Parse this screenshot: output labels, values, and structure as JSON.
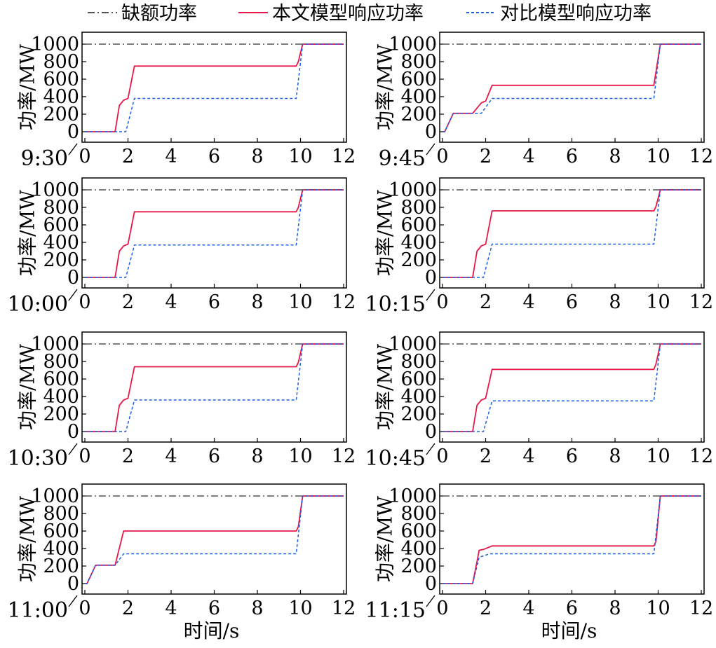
{
  "legend": [
    {
      "key": "deficit",
      "label": "缺额功率",
      "color": "#555555",
      "dash": "10,4,2,4"
    },
    {
      "key": "proposed",
      "label": "本文模型响应功率",
      "color": "#e8174a",
      "dash": ""
    },
    {
      "key": "baseline",
      "label": "对比模型响应功率",
      "color": "#1a5fe6",
      "dash": "4,3"
    }
  ],
  "chart_data": [
    {
      "type": "line",
      "time_label": "9:30",
      "ylabel": "功率/MW",
      "xlabel": "",
      "xlim": [
        0,
        12
      ],
      "ylim": [
        0,
        1000
      ],
      "x_ticks": [
        "0",
        "2",
        "4",
        "6",
        "8",
        "10",
        "12"
      ],
      "y_ticks": [
        "0",
        "200",
        "400",
        "600",
        "800",
        "1000"
      ],
      "series": [
        {
          "key": "deficit",
          "x": [
            0,
            12
          ],
          "y": [
            1000,
            1000
          ]
        },
        {
          "key": "proposed",
          "x": [
            0,
            1.4,
            1.6,
            1.8,
            1.9,
            2.0,
            2.3,
            9.8,
            9.9,
            10.1,
            12
          ],
          "y": [
            0,
            0,
            300,
            360,
            370,
            380,
            750,
            750,
            800,
            1000,
            1000
          ]
        },
        {
          "key": "baseline",
          "x": [
            0,
            1.9,
            2.3,
            9.8,
            10.1,
            12
          ],
          "y": [
            0,
            0,
            380,
            380,
            1000,
            1000
          ]
        }
      ]
    },
    {
      "type": "line",
      "time_label": "9:45",
      "ylabel": "功率/MW",
      "xlabel": "",
      "xlim": [
        0,
        12
      ],
      "ylim": [
        0,
        1000
      ],
      "x_ticks": [
        "0",
        "2",
        "4",
        "6",
        "8",
        "10",
        "12"
      ],
      "y_ticks": [
        "0",
        "200",
        "400",
        "600",
        "800",
        "1000"
      ],
      "series": [
        {
          "key": "deficit",
          "x": [
            0,
            12
          ],
          "y": [
            1000,
            1000
          ]
        },
        {
          "key": "proposed",
          "x": [
            0,
            0.1,
            0.5,
            1.4,
            1.8,
            1.9,
            2.0,
            2.3,
            9.8,
            10.1,
            12
          ],
          "y": [
            0,
            0,
            210,
            210,
            330,
            340,
            350,
            530,
            530,
            1000,
            1000
          ]
        },
        {
          "key": "baseline",
          "x": [
            0,
            0.1,
            0.5,
            1.8,
            2.3,
            9.8,
            10.1,
            12
          ],
          "y": [
            0,
            0,
            210,
            210,
            380,
            380,
            1000,
            1000
          ]
        }
      ]
    },
    {
      "type": "line",
      "time_label": "10:00",
      "ylabel": "功率/MW",
      "xlabel": "",
      "xlim": [
        0,
        12
      ],
      "ylim": [
        0,
        1000
      ],
      "x_ticks": [
        "0",
        "2",
        "4",
        "6",
        "8",
        "10",
        "12"
      ],
      "y_ticks": [
        "0",
        "200",
        "400",
        "600",
        "800",
        "1000"
      ],
      "series": [
        {
          "key": "deficit",
          "x": [
            0,
            12
          ],
          "y": [
            1000,
            1000
          ]
        },
        {
          "key": "proposed",
          "x": [
            0,
            1.4,
            1.6,
            1.8,
            1.9,
            2.0,
            2.3,
            9.8,
            9.9,
            10.1,
            12
          ],
          "y": [
            0,
            0,
            300,
            360,
            370,
            380,
            750,
            750,
            800,
            1000,
            1000
          ]
        },
        {
          "key": "baseline",
          "x": [
            0,
            1.9,
            2.3,
            9.8,
            10.1,
            12
          ],
          "y": [
            0,
            0,
            370,
            370,
            1000,
            1000
          ]
        }
      ]
    },
    {
      "type": "line",
      "time_label": "10:15",
      "ylabel": "功率/MW",
      "xlabel": "",
      "xlim": [
        0,
        12
      ],
      "ylim": [
        0,
        1000
      ],
      "x_ticks": [
        "0",
        "2",
        "4",
        "6",
        "8",
        "10",
        "12"
      ],
      "y_ticks": [
        "0",
        "200",
        "400",
        "600",
        "800",
        "1000"
      ],
      "series": [
        {
          "key": "deficit",
          "x": [
            0,
            12
          ],
          "y": [
            1000,
            1000
          ]
        },
        {
          "key": "proposed",
          "x": [
            0,
            1.4,
            1.6,
            1.8,
            1.9,
            2.0,
            2.3,
            9.8,
            9.9,
            10.1,
            12
          ],
          "y": [
            0,
            0,
            300,
            360,
            370,
            380,
            760,
            760,
            810,
            1000,
            1000
          ]
        },
        {
          "key": "baseline",
          "x": [
            0,
            1.9,
            2.3,
            9.8,
            10.1,
            12
          ],
          "y": [
            0,
            0,
            380,
            380,
            1000,
            1000
          ]
        }
      ]
    },
    {
      "type": "line",
      "time_label": "10:30",
      "ylabel": "功率/MW",
      "xlabel": "",
      "xlim": [
        0,
        12
      ],
      "ylim": [
        0,
        1000
      ],
      "x_ticks": [
        "0",
        "2",
        "4",
        "6",
        "8",
        "10",
        "12"
      ],
      "y_ticks": [
        "0",
        "200",
        "400",
        "600",
        "800",
        "1000"
      ],
      "series": [
        {
          "key": "deficit",
          "x": [
            0,
            12
          ],
          "y": [
            1000,
            1000
          ]
        },
        {
          "key": "proposed",
          "x": [
            0,
            1.4,
            1.6,
            1.8,
            1.9,
            2.0,
            2.3,
            9.8,
            9.9,
            10.1,
            12
          ],
          "y": [
            0,
            0,
            300,
            360,
            370,
            380,
            740,
            740,
            790,
            1000,
            1000
          ]
        },
        {
          "key": "baseline",
          "x": [
            0,
            1.9,
            2.3,
            9.8,
            10.1,
            12
          ],
          "y": [
            0,
            0,
            360,
            360,
            1000,
            1000
          ]
        }
      ]
    },
    {
      "type": "line",
      "time_label": "10:45",
      "ylabel": "功率/MW",
      "xlabel": "",
      "xlim": [
        0,
        12
      ],
      "ylim": [
        0,
        1000
      ],
      "x_ticks": [
        "0",
        "2",
        "4",
        "6",
        "8",
        "10",
        "12"
      ],
      "y_ticks": [
        "0",
        "200",
        "400",
        "600",
        "800",
        "1000"
      ],
      "series": [
        {
          "key": "deficit",
          "x": [
            0,
            12
          ],
          "y": [
            1000,
            1000
          ]
        },
        {
          "key": "proposed",
          "x": [
            0,
            1.4,
            1.6,
            1.8,
            1.9,
            2.0,
            2.3,
            9.8,
            9.9,
            10.1,
            12
          ],
          "y": [
            0,
            0,
            300,
            360,
            370,
            380,
            710,
            710,
            770,
            1000,
            1000
          ]
        },
        {
          "key": "baseline",
          "x": [
            0,
            1.9,
            2.3,
            9.8,
            10.1,
            12
          ],
          "y": [
            0,
            0,
            350,
            350,
            1000,
            1000
          ]
        }
      ]
    },
    {
      "type": "line",
      "time_label": "11:00",
      "ylabel": "功率/MW",
      "xlabel": "时间/s",
      "xlim": [
        0,
        12
      ],
      "ylim": [
        0,
        1000
      ],
      "x_ticks": [
        "0",
        "2",
        "4",
        "6",
        "8",
        "10",
        "12"
      ],
      "y_ticks": [
        "0",
        "200",
        "400",
        "600",
        "800",
        "1000"
      ],
      "series": [
        {
          "key": "deficit",
          "x": [
            0,
            12
          ],
          "y": [
            1000,
            1000
          ]
        },
        {
          "key": "proposed",
          "x": [
            0,
            0.1,
            0.5,
            1.4,
            1.8,
            9.8,
            9.9,
            10.1,
            12
          ],
          "y": [
            0,
            0,
            210,
            210,
            600,
            600,
            650,
            1000,
            1000
          ]
        },
        {
          "key": "baseline",
          "x": [
            0,
            0.1,
            0.5,
            1.4,
            1.8,
            9.8,
            10.1,
            12
          ],
          "y": [
            0,
            0,
            210,
            210,
            340,
            340,
            1000,
            1000
          ]
        }
      ]
    },
    {
      "type": "line",
      "time_label": "11:15",
      "ylabel": "功率/MW",
      "xlabel": "时间/s",
      "xlim": [
        0,
        12
      ],
      "ylim": [
        0,
        1000
      ],
      "x_ticks": [
        "0",
        "2",
        "4",
        "6",
        "8",
        "10",
        "12"
      ],
      "y_ticks": [
        "0",
        "200",
        "400",
        "600",
        "800",
        "1000"
      ],
      "series": [
        {
          "key": "deficit",
          "x": [
            0,
            12
          ],
          "y": [
            1000,
            1000
          ]
        },
        {
          "key": "proposed",
          "x": [
            0,
            1.4,
            1.7,
            1.9,
            2.3,
            9.8,
            9.9,
            10.1,
            12
          ],
          "y": [
            0,
            0,
            380,
            390,
            430,
            430,
            480,
            1000,
            1000
          ]
        },
        {
          "key": "baseline",
          "x": [
            0,
            1.4,
            1.7,
            2.2,
            9.8,
            10.1,
            12
          ],
          "y": [
            0,
            0,
            300,
            340,
            340,
            1000,
            1000
          ]
        }
      ]
    }
  ]
}
